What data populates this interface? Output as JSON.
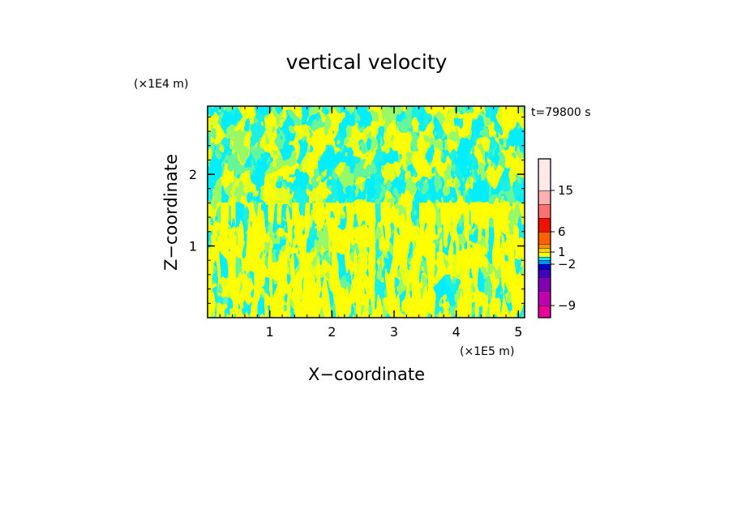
{
  "chart_data": {
    "type": "heatmap",
    "title": "vertical velocity",
    "xlabel": "X−coordinate",
    "ylabel": "Z−coordinate",
    "x_unit": "(×1E5 m)",
    "y_unit": "(×1E4 m)",
    "time_label": "t=79800 s",
    "xlim": [
      0,
      5.1
    ],
    "ylim": [
      0,
      2.95
    ],
    "x_ticks": [
      {
        "value": 1,
        "label": "1"
      },
      {
        "value": 2,
        "label": "2"
      },
      {
        "value": 3,
        "label": "3"
      },
      {
        "value": 4,
        "label": "4"
      },
      {
        "value": 5,
        "label": "5"
      }
    ],
    "y_ticks": [
      {
        "value": 1,
        "label": "1"
      },
      {
        "value": 2,
        "label": "2"
      }
    ],
    "field_colors": {
      "positive": "#ffff00",
      "negative": "#00eeff"
    },
    "colorbar": {
      "levels": [
        {
          "lo": -12,
          "hi": -9,
          "color": "#e8009a"
        },
        {
          "lo": -9,
          "hi": -6,
          "color": "#c000b0"
        },
        {
          "lo": -6,
          "hi": -4,
          "color": "#8000b8"
        },
        {
          "lo": -4,
          "hi": -3,
          "color": "#4000c0"
        },
        {
          "lo": -3,
          "hi": -2,
          "color": "#0000d0"
        },
        {
          "lo": -2,
          "hi": -1,
          "color": "#0090ff"
        },
        {
          "lo": -1,
          "hi": 0,
          "color": "#00eeff"
        },
        {
          "lo": 0,
          "hi": 1,
          "color": "#ffff00"
        },
        {
          "lo": 1,
          "hi": 2,
          "color": "#ffd000"
        },
        {
          "lo": 2,
          "hi": 4,
          "color": "#ff9000"
        },
        {
          "lo": 4,
          "hi": 6,
          "color": "#ff6000"
        },
        {
          "lo": 6,
          "hi": 9,
          "color": "#ee1000"
        },
        {
          "lo": 9,
          "hi": 12,
          "color": "#ff7070"
        },
        {
          "lo": 12,
          "hi": 15,
          "color": "#ffb0b0"
        },
        {
          "lo": 15,
          "hi": 20,
          "color": "#ffe8e8"
        }
      ],
      "labels": [
        "15",
        "6",
        "1",
        "−2",
        "−9"
      ]
    }
  }
}
